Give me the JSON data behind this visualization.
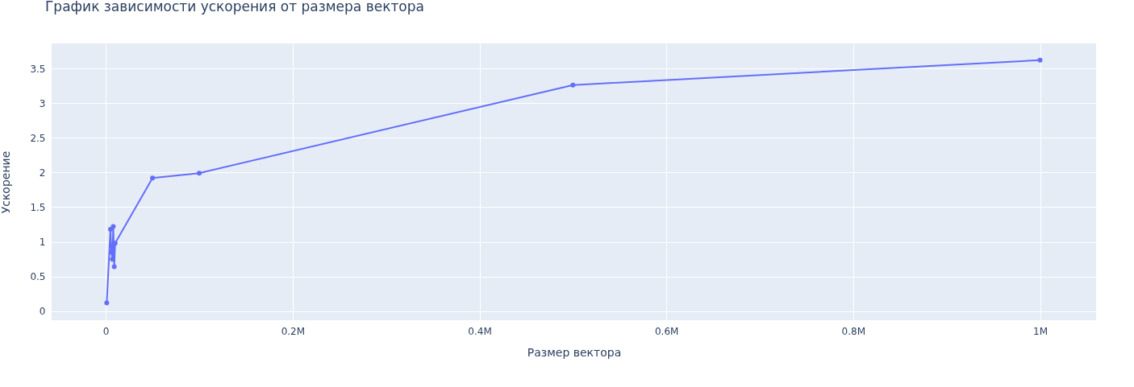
{
  "chart_data": {
    "type": "line",
    "title": "График зависимости ускорения от размера вектора",
    "xlabel": "Размер вектора",
    "ylabel": "Ускорение",
    "x": [
      1000,
      5000,
      6000,
      7000,
      8000,
      9000,
      10000,
      50000,
      100000,
      500000,
      1000000
    ],
    "series": [
      {
        "color": "#636efa",
        "values": [
          0.12,
          1.18,
          0.85,
          0.75,
          1.22,
          0.64,
          0.98,
          1.92,
          1.99,
          3.26,
          3.62
        ]
      }
    ],
    "xlim": [
      -58000,
      1060000
    ],
    "xticks": [
      0,
      {
        "value": 200000,
        "label": "0.2M"
      },
      {
        "value": 400000,
        "label": "0.4M"
      },
      {
        "value": 600000,
        "label": "0.6M"
      },
      {
        "value": 800000,
        "label": "0.8M"
      },
      {
        "value": 1000000,
        "label": "1M"
      }
    ],
    "ylim": [
      -0.13,
      3.86
    ],
    "yticks": [
      0,
      0.5,
      1,
      1.5,
      2,
      2.5,
      3,
      3.5
    ],
    "grid": true,
    "marker": "circle",
    "line_style": "solid"
  }
}
